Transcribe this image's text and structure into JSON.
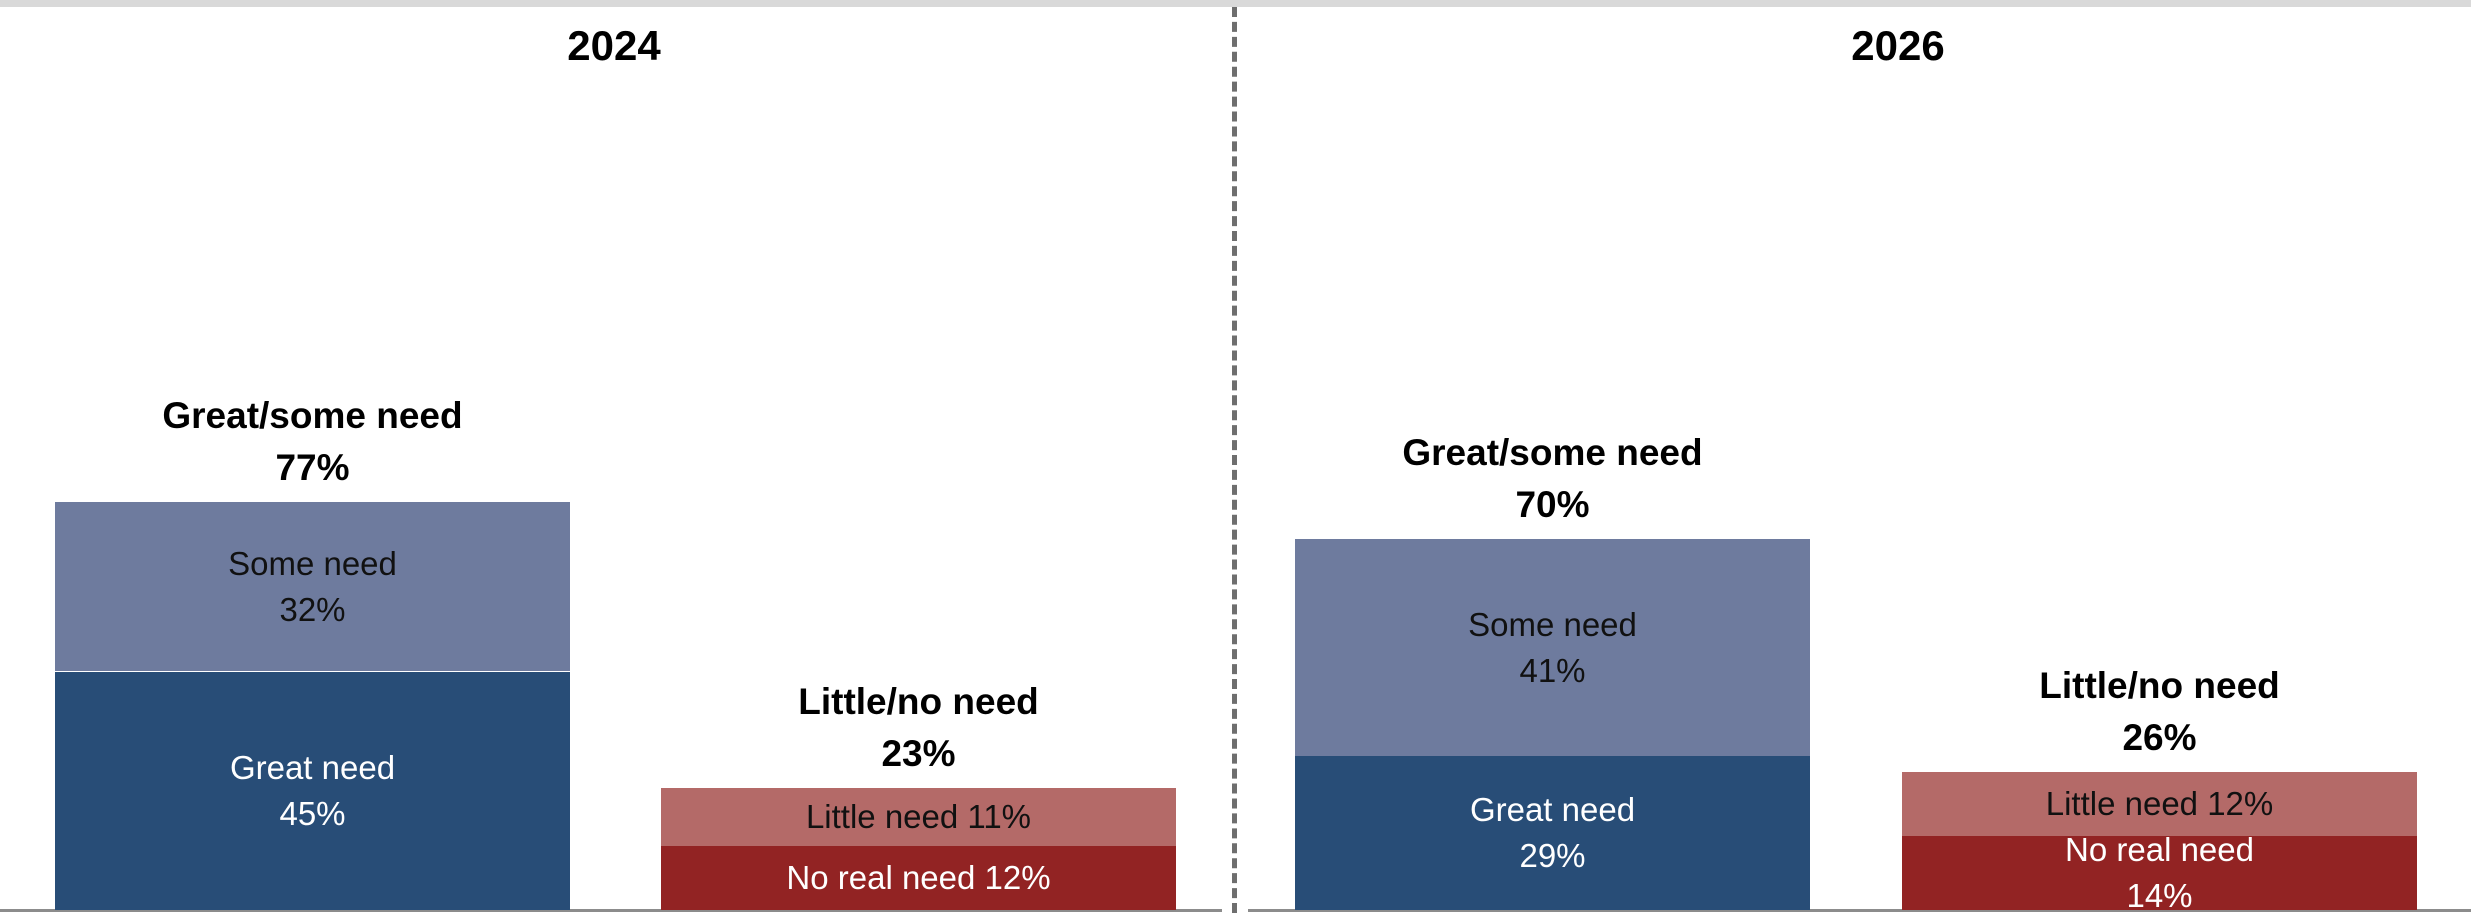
{
  "colors": {
    "great": "#284d77",
    "some": "#6e7b9e",
    "little": "#b46a68",
    "no_real": "#922323"
  },
  "chart_data": [
    {
      "type": "bar",
      "title": "2024",
      "ylim": [
        0,
        100
      ],
      "groups": [
        {
          "label": "Great/some need",
          "total": "77%",
          "segments": [
            {
              "name": "Great need",
              "value": 45,
              "label": "45%",
              "color": "great"
            },
            {
              "name": "Some need",
              "value": 32,
              "label": "32%",
              "color": "some"
            }
          ]
        },
        {
          "label": "Little/no need",
          "total": "23%",
          "segments": [
            {
              "name": "No real need",
              "value": 12,
              "label": "12%",
              "color": "no_real"
            },
            {
              "name": "Little need",
              "value": 11,
              "label": "11%",
              "color": "little"
            }
          ]
        }
      ]
    },
    {
      "type": "bar",
      "title": "2026",
      "ylim": [
        0,
        100
      ],
      "groups": [
        {
          "label": "Great/some need",
          "total": "70%",
          "segments": [
            {
              "name": "Great need",
              "value": 29,
              "label": "29%",
              "color": "great"
            },
            {
              "name": "Some need",
              "value": 41,
              "label": "41%",
              "color": "some"
            }
          ]
        },
        {
          "label": "Little/no need",
          "total": "26%",
          "segments": [
            {
              "name": "No real need",
              "value": 14,
              "label": "14%",
              "color": "no_real"
            },
            {
              "name": "Little need",
              "value": 12,
              "label": "12%",
              "color": "little"
            }
          ]
        }
      ]
    }
  ]
}
